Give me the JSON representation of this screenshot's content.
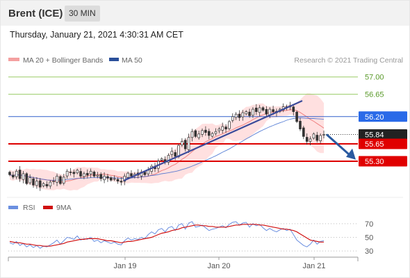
{
  "header": {
    "instrument": "Brent (ICE)",
    "timeframe": "30 MIN"
  },
  "timestamp": "Thursday, January 21, 2021 4:30:31 AM CET",
  "legend": {
    "ma20": "MA 20 + Bollinger Bands",
    "ma50": "MA 50",
    "credit": "Research © 2021 Trading Central"
  },
  "colors": {
    "resistance": "#99cc66",
    "ma50": "#3060cc",
    "current": "#222222",
    "support": "#dd0000",
    "bollinger": "#ffd6d6",
    "trendline": "#3a4a9a",
    "arrow": "#2a5aa0",
    "rsi": "#6b8fe0",
    "rsi_ma": "#d01010"
  },
  "chart_data": [
    {
      "type": "candlestick",
      "x_ticks": [
        "Jan 19",
        "Jan 20",
        "Jan 21"
      ],
      "ylim": [
        54.6,
        57.15
      ],
      "levels": [
        {
          "label": "57.00",
          "value": 57.0,
          "kind": "resistance"
        },
        {
          "label": "56.65",
          "value": 56.65,
          "kind": "resistance"
        },
        {
          "label": "56.20",
          "value": 56.2,
          "kind": "ma50"
        },
        {
          "label": "55.84",
          "value": 55.84,
          "kind": "current"
        },
        {
          "label": "55.65",
          "value": 55.65,
          "kind": "support"
        },
        {
          "label": "55.30",
          "value": 55.3,
          "kind": "support"
        }
      ],
      "close": [
        55.03,
        54.98,
        55.1,
        54.95,
        55.05,
        54.85,
        54.97,
        54.82,
        54.9,
        54.78,
        54.85,
        54.8,
        54.88,
        54.9,
        55.0,
        54.85,
        54.98,
        55.1,
        55.08,
        55.05,
        55.12,
        55.0,
        55.05,
        55.02,
        55.1,
        55.0,
        55.02,
        54.95,
        55.0,
        54.96,
        54.92,
        54.95,
        54.9,
        54.88,
        55.0,
        55.06,
        55.0,
        55.04,
        55.02,
        55.08,
        55.03,
        55.12,
        55.2,
        55.15,
        55.3,
        55.35,
        55.28,
        55.42,
        55.5,
        55.4,
        55.62,
        55.7,
        55.55,
        55.78,
        55.9,
        55.8,
        55.85,
        55.92,
        55.88,
        55.82,
        55.86,
        55.9,
        55.95,
        56.0,
        55.95,
        56.1,
        56.2,
        56.25,
        56.18,
        56.28,
        56.3,
        56.22,
        56.35,
        56.3,
        56.38,
        56.33,
        56.25,
        56.35,
        56.3,
        56.28,
        56.35,
        56.4,
        56.38,
        56.42,
        56.3,
        56.1,
        55.95,
        55.8,
        55.7,
        55.75,
        55.85,
        55.72,
        55.82,
        55.84
      ]
    },
    {
      "type": "line",
      "title": "",
      "series": [
        {
          "name": "RSI",
          "values": [
            42,
            40,
            44,
            38,
            41,
            36,
            39,
            35,
            38,
            34,
            37,
            36,
            39,
            42,
            46,
            40,
            45,
            50,
            49,
            47,
            52,
            46,
            48,
            47,
            50,
            44,
            46,
            42,
            45,
            43,
            41,
            43,
            40,
            39,
            45,
            49,
            46,
            48,
            47,
            50,
            48,
            54,
            58,
            55,
            61,
            63,
            58,
            64,
            66,
            60,
            68,
            70,
            62,
            71,
            73,
            65,
            66,
            68,
            64,
            60,
            62,
            63,
            65,
            67,
            64,
            69,
            72,
            73,
            68,
            71,
            72,
            65,
            70,
            67,
            69,
            64,
            60,
            63,
            60,
            58,
            61,
            63,
            60,
            62,
            54,
            46,
            42,
            38,
            36,
            40,
            46,
            40,
            44,
            45
          ]
        },
        {
          "name": "9MA",
          "values": [
            44,
            43,
            42,
            42,
            41,
            40,
            40,
            39,
            38,
            38,
            37,
            37,
            37,
            38,
            39,
            40,
            41,
            43,
            44,
            45,
            46,
            47,
            47,
            48,
            48,
            48,
            48,
            47,
            46,
            45,
            45,
            44,
            43,
            42,
            43,
            44,
            44,
            45,
            46,
            47,
            48,
            49,
            50,
            52,
            54,
            56,
            57,
            58,
            60,
            61,
            62,
            64,
            65,
            66,
            67,
            68,
            68,
            67,
            67,
            66,
            66,
            65,
            65,
            65,
            65,
            66,
            67,
            68,
            68,
            69,
            69,
            69,
            69,
            69,
            68,
            68,
            67,
            66,
            65,
            64,
            63,
            62,
            62,
            61,
            60,
            58,
            55,
            52,
            49,
            46,
            45,
            44,
            43,
            43
          ]
        }
      ],
      "ylim": [
        25,
        78
      ],
      "y_ticks": [
        "70",
        "50",
        "30"
      ],
      "y_tick_values": [
        70,
        50,
        30
      ]
    }
  ]
}
